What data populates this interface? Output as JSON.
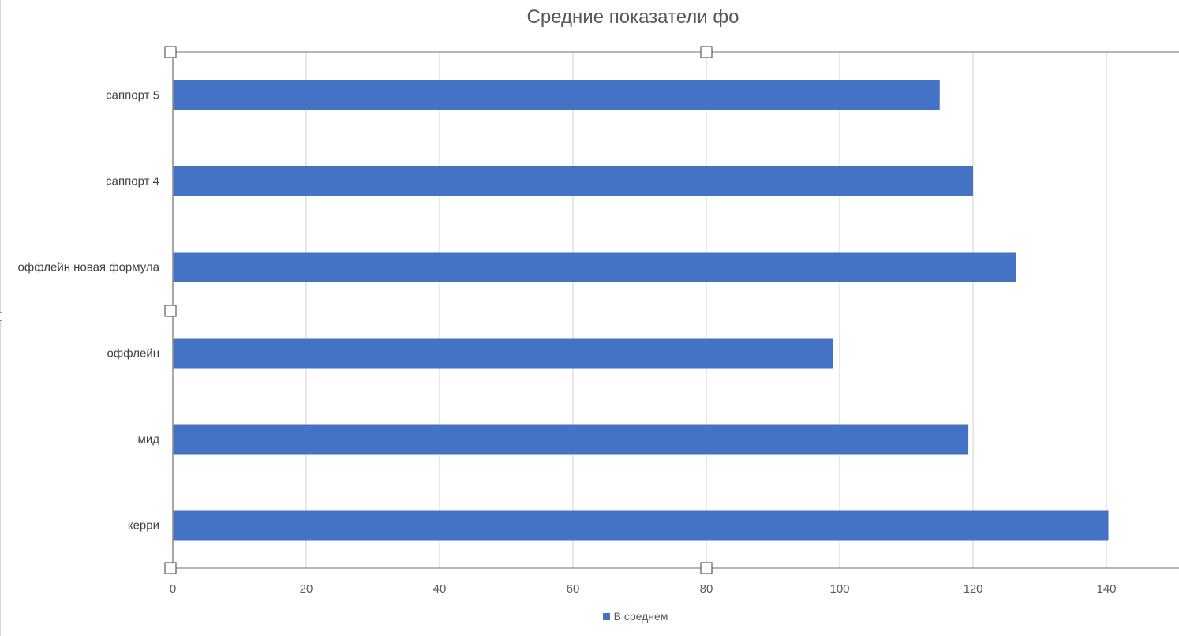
{
  "chart_data": {
    "type": "bar",
    "orientation": "horizontal",
    "title": "Средние показатели фо",
    "xlabel": "",
    "ylabel": "",
    "categories": [
      "керри",
      "мид",
      "оффлейн",
      "оффлейн новая формула",
      "саппорт 4",
      "саппорт 5"
    ],
    "series": [
      {
        "name": "В среднем",
        "values": [
          140.3,
          119.3,
          99.0,
          126.4,
          120.0,
          115.0
        ],
        "color": "#4472c4"
      }
    ],
    "xlim": [
      0,
      150
    ],
    "x_ticks": [
      0,
      20,
      40,
      60,
      80,
      100,
      120,
      140
    ],
    "grid": true,
    "legend_position": "bottom"
  }
}
